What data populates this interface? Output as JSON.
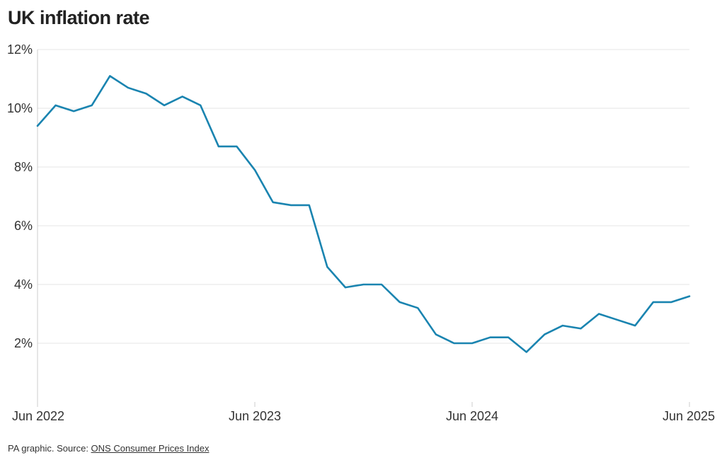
{
  "header": {
    "title": "UK inflation rate"
  },
  "footer": {
    "prefix": "PA graphic. Source: ",
    "source_link": "ONS Consumer Prices Index"
  },
  "colors": {
    "line": "#1a84b0",
    "grid": "#e6e6e6",
    "axis": "#cccccc",
    "text": "#333333"
  },
  "chart_data": {
    "type": "line",
    "title": "UK inflation rate",
    "xlabel": "",
    "ylabel": "",
    "ylim": [
      0,
      12
    ],
    "yticks": [
      2,
      4,
      6,
      8,
      10,
      12
    ],
    "ytick_labels": [
      "2%",
      "4%",
      "6%",
      "8%",
      "10%",
      "12%"
    ],
    "xticks": [
      0,
      12,
      24,
      36
    ],
    "xtick_labels": [
      "Jun 2022",
      "Jun 2023",
      "Jun 2024",
      "Jun 2025"
    ],
    "grid": true,
    "series": [
      {
        "values": [
          9.4,
          10.1,
          9.9,
          10.1,
          11.1,
          10.7,
          10.5,
          10.1,
          10.4,
          10.1,
          8.7,
          8.7,
          7.9,
          6.8,
          6.7,
          6.7,
          4.6,
          3.9,
          4.0,
          4.0,
          3.4,
          3.2,
          2.3,
          2.0,
          2.0,
          2.2,
          2.2,
          1.7,
          2.3,
          2.6,
          2.5,
          3.0,
          2.8,
          2.6,
          3.4,
          3.4,
          3.6
        ]
      }
    ]
  }
}
